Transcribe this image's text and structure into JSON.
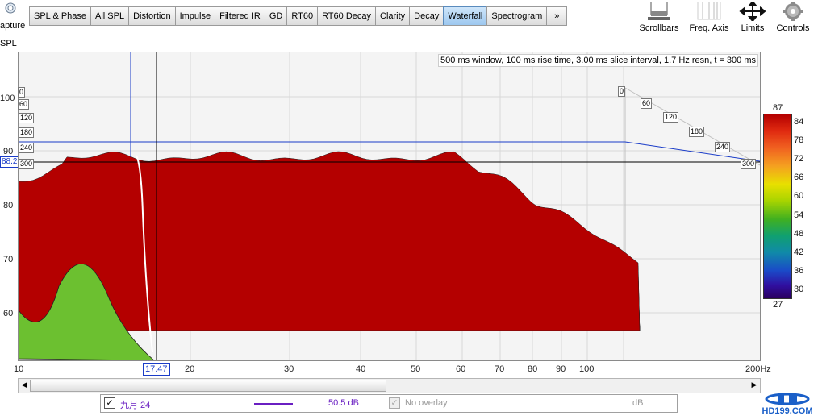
{
  "left_cut": {
    "capture_label": "apture",
    "spl_label": "SPL"
  },
  "tabs": [
    {
      "label": "SPL & Phase",
      "active": false
    },
    {
      "label": "All SPL",
      "active": false
    },
    {
      "label": "Distortion",
      "active": false
    },
    {
      "label": "Impulse",
      "active": false
    },
    {
      "label": "Filtered IR",
      "active": false
    },
    {
      "label": "GD",
      "active": false
    },
    {
      "label": "RT60",
      "active": false
    },
    {
      "label": "RT60 Decay",
      "active": false
    },
    {
      "label": "Clarity",
      "active": false
    },
    {
      "label": "Decay",
      "active": false
    },
    {
      "label": "Waterfall",
      "active": true
    },
    {
      "label": "Spectrogram",
      "active": false
    },
    {
      "label": "»",
      "active": false
    }
  ],
  "tools": {
    "scrollbars": "Scrollbars",
    "freq_axis": "Freq. Axis",
    "limits": "Limits",
    "controls": "Controls"
  },
  "plot": {
    "info": "500 ms window, 100 ms rise time, 3.00 ms slice interval, 1.7 Hz resn, t = 300 ms",
    "y_ticks": [
      "100",
      "90",
      "80",
      "70",
      "60"
    ],
    "cursor_level": "88.2",
    "cursor_freq": "17.47",
    "x_ticks": [
      "10",
      "20",
      "30",
      "40",
      "50",
      "60",
      "70",
      "80",
      "90",
      "100",
      "200Hz"
    ],
    "slice_left": [
      "0",
      "60",
      "120",
      "180",
      "240",
      "300"
    ],
    "slice_right": [
      "0",
      "60",
      "120",
      "180",
      "240",
      "300"
    ]
  },
  "colorbar": {
    "top": "87",
    "bottom": "27",
    "ticks": [
      "84",
      "78",
      "72",
      "66",
      "60",
      "54",
      "48",
      "42",
      "36",
      "30"
    ],
    "colors": [
      "#b40000",
      "#e02a10",
      "#f06020",
      "#f5a020",
      "#e8e000",
      "#a8d400",
      "#40b020",
      "#10a070",
      "#108aa8",
      "#1a4ac8",
      "#300fa0",
      "#2a0060"
    ]
  },
  "legend": {
    "measurement_name": "九月 24",
    "line_color": "#6a1fc2",
    "level": "50.5 dB",
    "overlay_label": "No overlay",
    "overlay_unit": "dB"
  },
  "watermark": "HD199.COM"
}
